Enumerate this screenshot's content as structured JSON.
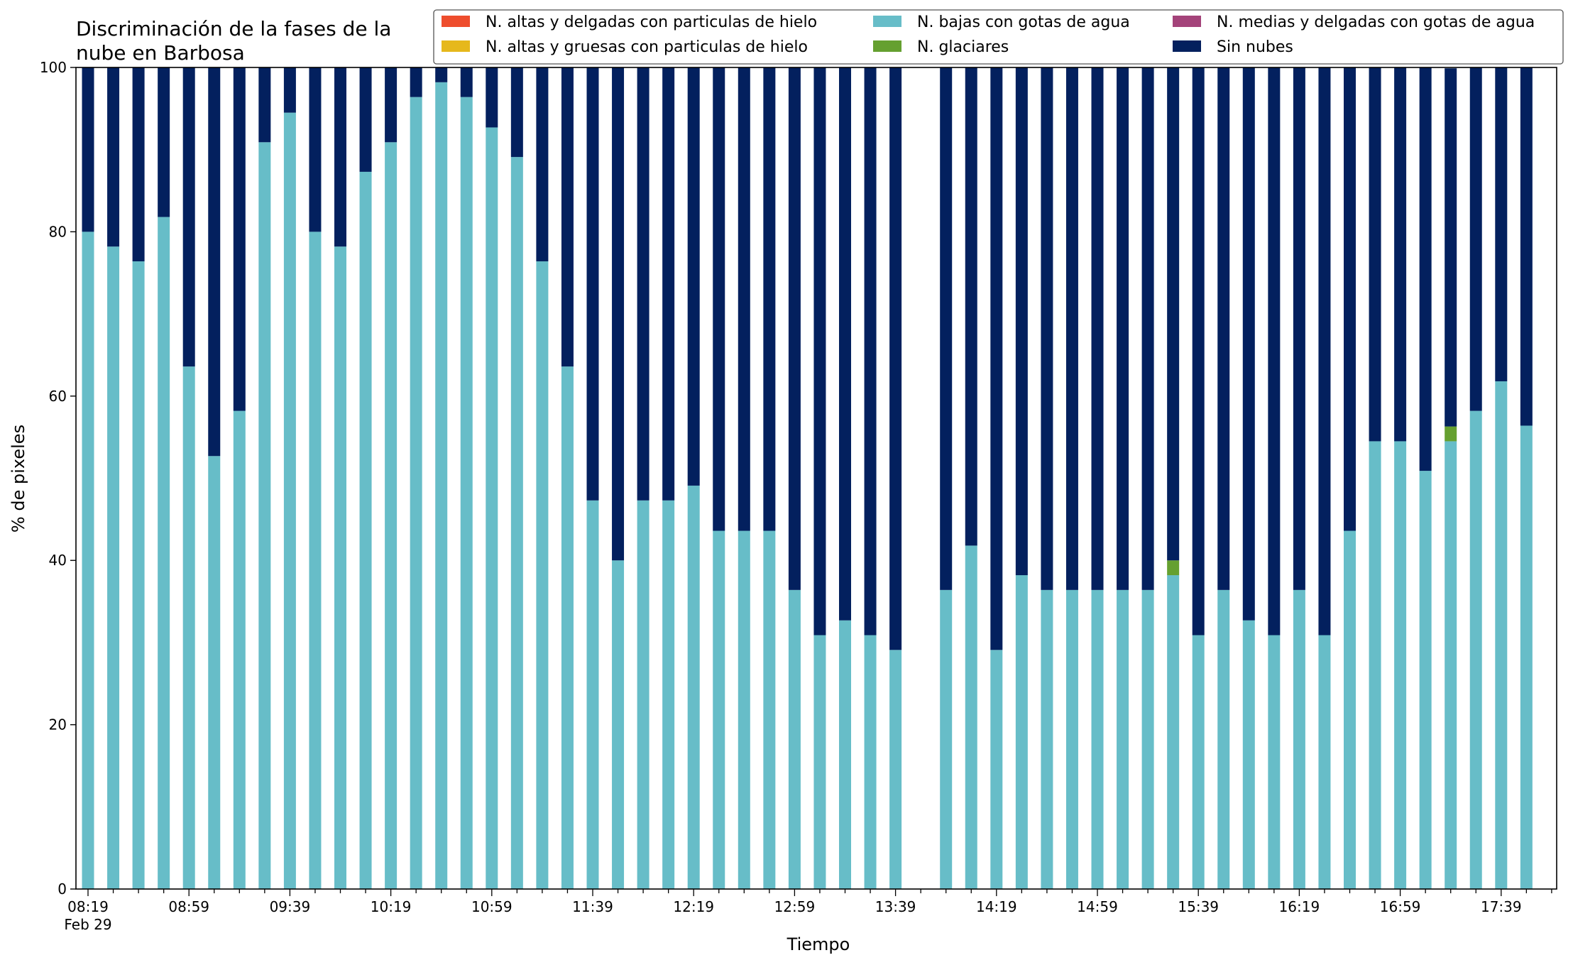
{
  "chart_data": {
    "type": "bar",
    "stacked": true,
    "title_lines": [
      "Discriminación de la fases de la",
      "nube en Barbosa"
    ],
    "xlabel": "Tiempo",
    "ylabel": "% de pixeles",
    "ylim": [
      0,
      100
    ],
    "yticks": [
      0,
      20,
      40,
      60,
      80,
      100
    ],
    "grid": false,
    "legend_placement": "top-right",
    "x_first_tick_sublabel": "Feb 29",
    "x_tick_labels": [
      "08:19",
      "08:59",
      "09:39",
      "10:19",
      "10:59",
      "11:39",
      "12:19",
      "12:59",
      "13:39",
      "14:19",
      "14:59",
      "15:39",
      "16:19",
      "16:59",
      "17:39"
    ],
    "x_tick_labels_every": 4,
    "x": [
      "08:19",
      "08:29",
      "08:39",
      "08:49",
      "08:59",
      "09:09",
      "09:19",
      "09:29",
      "09:39",
      "09:49",
      "09:59",
      "10:09",
      "10:19",
      "10:29",
      "10:39",
      "10:49",
      "10:59",
      "11:09",
      "11:19",
      "11:29",
      "11:39",
      "11:49",
      "11:59",
      "12:09",
      "12:19",
      "12:29",
      "12:39",
      "12:49",
      "12:59",
      "13:09",
      "13:19",
      "13:29",
      "13:39",
      "13:49",
      "13:59",
      "14:09",
      "14:19",
      "14:29",
      "14:39",
      "14:49",
      "14:59",
      "15:09",
      "15:19",
      "15:29",
      "15:39",
      "15:49",
      "15:59",
      "16:09",
      "16:19",
      "16:29",
      "16:39",
      "16:49",
      "16:59",
      "17:09",
      "17:19",
      "17:29",
      "17:39",
      "17:49"
    ],
    "series": [
      {
        "name": "N. altas y delgadas con particulas de hielo",
        "color": "#ee4d2d",
        "values": [
          0,
          0,
          0,
          0,
          0,
          0,
          0,
          0,
          0,
          0,
          0,
          0,
          0,
          0,
          0,
          0,
          0,
          0,
          0,
          0,
          0,
          0,
          0,
          0,
          0,
          0,
          0,
          0,
          0,
          0,
          0,
          0,
          0,
          null,
          0,
          0,
          0,
          0,
          0,
          0,
          0,
          0,
          0,
          0,
          0,
          0,
          0,
          0,
          0,
          0,
          0,
          0,
          0,
          0,
          0,
          0,
          0,
          0
        ]
      },
      {
        "name": "N. altas y gruesas con particulas de hielo",
        "color": "#e6b81c",
        "values": [
          0,
          0,
          0,
          0,
          0,
          0,
          0,
          0,
          0,
          0,
          0,
          0,
          0,
          0,
          0,
          0,
          0,
          0,
          0,
          0,
          0,
          0,
          0,
          0,
          0,
          0,
          0,
          0,
          0,
          0,
          0,
          0,
          0,
          null,
          0,
          0,
          0,
          0,
          0,
          0,
          0,
          0,
          0,
          0,
          0,
          0,
          0,
          0,
          0,
          0,
          0,
          0,
          0,
          0,
          0,
          0,
          0,
          0
        ]
      },
      {
        "name": "N. bajas con gotas de agua",
        "color": "#67bdc8",
        "values": [
          80,
          78.2,
          76.4,
          81.8,
          63.6,
          52.7,
          58.2,
          90.9,
          94.5,
          80,
          78.2,
          87.3,
          90.9,
          96.4,
          98.2,
          96.4,
          92.7,
          89.1,
          76.4,
          63.6,
          47.3,
          40,
          47.3,
          47.3,
          49.1,
          43.6,
          43.6,
          43.6,
          36.4,
          30.9,
          32.7,
          30.9,
          29.1,
          null,
          36.4,
          41.8,
          29.1,
          38.2,
          36.4,
          36.4,
          36.4,
          36.4,
          36.4,
          38.2,
          30.9,
          36.4,
          32.7,
          30.9,
          36.4,
          30.9,
          43.6,
          54.5,
          54.5,
          50.9,
          54.5,
          58.2,
          61.8,
          56.4
        ]
      },
      {
        "name": "N. glaciares",
        "color": "#65a030",
        "values": [
          0,
          0,
          0,
          0,
          0,
          0,
          0,
          0,
          0,
          0,
          0,
          0,
          0,
          0,
          0,
          0,
          0,
          0,
          0,
          0,
          0,
          0,
          0,
          0,
          0,
          0,
          0,
          0,
          0,
          0,
          0,
          0,
          0,
          null,
          0,
          0,
          0,
          0,
          0,
          0,
          0,
          0,
          0,
          1.8,
          0,
          0,
          0,
          0,
          0,
          0,
          0,
          0,
          0,
          0,
          1.8,
          0,
          0,
          0
        ]
      },
      {
        "name": "N. medias y delgadas con gotas de agua",
        "color": "#a4437a",
        "values": [
          0,
          0,
          0,
          0,
          0,
          0,
          0,
          0,
          0,
          0,
          0,
          0,
          0,
          0,
          0,
          0,
          0,
          0,
          0,
          0,
          0,
          0,
          0,
          0,
          0,
          0,
          0,
          0,
          0,
          0,
          0,
          0,
          0,
          null,
          0,
          0,
          0,
          0,
          0,
          0,
          0,
          0,
          0,
          0,
          0,
          0,
          0,
          0,
          0,
          0,
          0,
          0,
          0,
          0,
          0,
          0,
          0,
          0
        ]
      },
      {
        "name": "Sin nubes",
        "color": "#03205e",
        "values": [
          20,
          21.8,
          23.6,
          18.2,
          36.4,
          47.3,
          41.8,
          9.1,
          5.5,
          20,
          21.8,
          12.7,
          9.1,
          3.6,
          1.8,
          3.6,
          7.3,
          10.9,
          23.6,
          36.4,
          52.7,
          60,
          52.7,
          52.7,
          50.9,
          56.4,
          56.4,
          56.4,
          63.6,
          69.1,
          67.3,
          69.1,
          70.9,
          null,
          63.6,
          58.2,
          70.9,
          61.8,
          63.6,
          63.6,
          63.6,
          63.6,
          63.6,
          60,
          69.1,
          63.6,
          67.3,
          69.1,
          63.6,
          69.1,
          56.4,
          45.5,
          45.5,
          49.1,
          43.6,
          41.8,
          38.2,
          43.6
        ]
      }
    ]
  }
}
